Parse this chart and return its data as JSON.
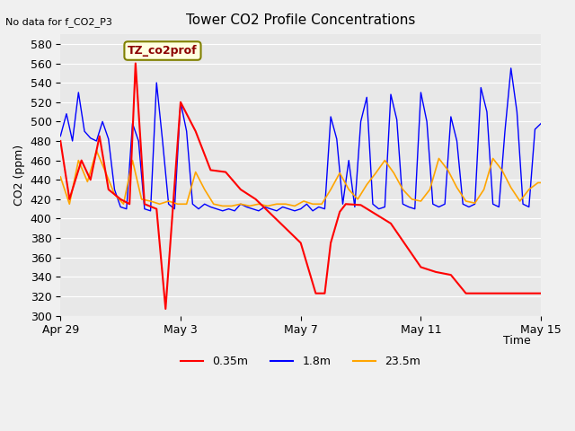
{
  "title": "Tower CO2 Profile Concentrations",
  "top_left_text": "No data for f_CO2_P3",
  "ylabel": "CO2 (ppm)",
  "xlabel": "Time",
  "annotation_box": "TZ_co2prof",
  "ylim": [
    300,
    590
  ],
  "yticks": [
    300,
    320,
    340,
    360,
    380,
    400,
    420,
    440,
    460,
    480,
    500,
    520,
    540,
    560,
    580
  ],
  "xtick_labels": [
    "Apr 29",
    "May 3",
    "May 7",
    "May 11",
    "May 15"
  ],
  "xtick_positions": [
    0,
    4,
    8,
    12,
    16
  ],
  "colors": {
    "red": "#FF0000",
    "blue": "#0000FF",
    "orange": "#FFA500"
  },
  "legend_labels": [
    "0.35m",
    "1.8m",
    "23.5m"
  ],
  "background_color": "#E8E8E8",
  "plot_bg_color": "#E8E8E8",
  "red_series": {
    "x": [
      0,
      0.3,
      0.7,
      1.0,
      1.3,
      1.6,
      2.0,
      2.3,
      2.5,
      2.8,
      3.2,
      3.5,
      4.0,
      4.5,
      5.0,
      5.5,
      6.0,
      6.5,
      7.0,
      7.5,
      8.0,
      8.5,
      8.8,
      9.0,
      9.3,
      9.5,
      10.0,
      11.0,
      12.0,
      12.5,
      13.0,
      13.5,
      14.0,
      15.0,
      16.0
    ],
    "y": [
      480,
      420,
      460,
      440,
      485,
      430,
      420,
      415,
      560,
      415,
      410,
      307,
      520,
      490,
      450,
      448,
      430,
      420,
      405,
      390,
      375,
      323,
      323,
      375,
      407,
      415,
      414,
      395,
      350,
      345,
      342,
      323,
      323,
      323,
      323
    ]
  },
  "blue_series": {
    "x": [
      0,
      0.2,
      0.4,
      0.6,
      0.8,
      1.0,
      1.2,
      1.4,
      1.6,
      1.8,
      2.0,
      2.2,
      2.4,
      2.6,
      2.8,
      3.0,
      3.2,
      3.4,
      3.6,
      3.8,
      4.0,
      4.2,
      4.4,
      4.6,
      4.8,
      5.0,
      5.2,
      5.4,
      5.6,
      5.8,
      6.0,
      6.2,
      6.4,
      6.6,
      6.8,
      7.0,
      7.2,
      7.4,
      7.6,
      7.8,
      8.0,
      8.2,
      8.4,
      8.6,
      8.8,
      9.0,
      9.2,
      9.4,
      9.6,
      9.8,
      10.0,
      10.2,
      10.4,
      10.6,
      10.8,
      11.0,
      11.2,
      11.4,
      11.6,
      11.8,
      12.0,
      12.2,
      12.4,
      12.6,
      12.8,
      13.0,
      13.2,
      13.4,
      13.6,
      13.8,
      14.0,
      14.2,
      14.4,
      14.6,
      14.8,
      15.0,
      15.2,
      15.4,
      15.6,
      15.8,
      16.0
    ],
    "y": [
      485,
      508,
      480,
      530,
      490,
      483,
      480,
      500,
      482,
      430,
      412,
      410,
      498,
      480,
      410,
      408,
      540,
      480,
      415,
      410,
      520,
      490,
      415,
      410,
      415,
      412,
      410,
      408,
      410,
      408,
      415,
      412,
      410,
      408,
      412,
      410,
      408,
      412,
      410,
      408,
      410,
      415,
      408,
      412,
      410,
      505,
      482,
      415,
      460,
      412,
      500,
      525,
      415,
      410,
      412,
      528,
      502,
      415,
      412,
      410,
      530,
      500,
      415,
      412,
      415,
      505,
      480,
      415,
      412,
      415,
      535,
      510,
      415,
      412,
      490,
      555,
      510,
      415,
      412,
      492,
      498
    ]
  },
  "orange_series": {
    "x": [
      0,
      0.3,
      0.6,
      0.9,
      1.2,
      1.5,
      1.8,
      2.1,
      2.4,
      2.7,
      3.0,
      3.3,
      3.6,
      3.9,
      4.2,
      4.5,
      4.8,
      5.1,
      5.4,
      5.7,
      6.0,
      6.3,
      6.6,
      6.9,
      7.2,
      7.5,
      7.8,
      8.1,
      8.4,
      8.7,
      9.0,
      9.3,
      9.6,
      9.9,
      10.2,
      10.5,
      10.8,
      11.1,
      11.4,
      11.7,
      12.0,
      12.3,
      12.6,
      12.9,
      13.2,
      13.5,
      13.8,
      14.1,
      14.4,
      14.7,
      15.0,
      15.3,
      15.6,
      15.9,
      16.0
    ],
    "y": [
      443,
      415,
      460,
      438,
      470,
      448,
      425,
      415,
      460,
      420,
      418,
      415,
      418,
      415,
      415,
      448,
      430,
      415,
      413,
      413,
      415,
      413,
      415,
      413,
      415,
      415,
      413,
      418,
      415,
      415,
      430,
      447,
      430,
      420,
      435,
      447,
      460,
      447,
      430,
      420,
      418,
      430,
      462,
      450,
      432,
      418,
      416,
      430,
      462,
      450,
      432,
      418,
      430,
      437,
      437
    ]
  }
}
